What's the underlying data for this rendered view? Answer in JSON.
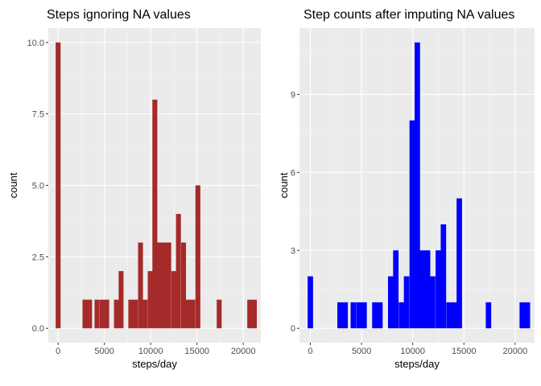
{
  "chart_data": [
    {
      "type": "bar",
      "title": "Steps ignoring NA values",
      "xlabel": "steps/day",
      "ylabel": "count",
      "xlim": [
        -1060,
        21900
      ],
      "ylim": [
        -0.5,
        10.5
      ],
      "xticks": [
        0,
        5000,
        10000,
        15000,
        20000
      ],
      "yticks": [
        0,
        2.5,
        5,
        7.5,
        10
      ],
      "ytick_labels": [
        "0.0",
        "2.5",
        "5.0",
        "7.5",
        "10.0"
      ],
      "bin_width": 530,
      "bins": [
        {
          "x": 0,
          "count": 10
        },
        {
          "x": 2900,
          "count": 1
        },
        {
          "x": 3400,
          "count": 1
        },
        {
          "x": 4200,
          "count": 1
        },
        {
          "x": 4750,
          "count": 1
        },
        {
          "x": 5250,
          "count": 1
        },
        {
          "x": 6300,
          "count": 1
        },
        {
          "x": 6800,
          "count": 2
        },
        {
          "x": 7850,
          "count": 1
        },
        {
          "x": 8350,
          "count": 1
        },
        {
          "x": 8900,
          "count": 3
        },
        {
          "x": 9400,
          "count": 1
        },
        {
          "x": 9950,
          "count": 2
        },
        {
          "x": 10450,
          "count": 8
        },
        {
          "x": 10950,
          "count": 3
        },
        {
          "x": 11450,
          "count": 3
        },
        {
          "x": 11950,
          "count": 3
        },
        {
          "x": 12500,
          "count": 2
        },
        {
          "x": 13000,
          "count": 4
        },
        {
          "x": 13550,
          "count": 3
        },
        {
          "x": 14050,
          "count": 1
        },
        {
          "x": 14550,
          "count": 1
        },
        {
          "x": 15100,
          "count": 5
        },
        {
          "x": 17400,
          "count": 1
        },
        {
          "x": 20700,
          "count": 1
        },
        {
          "x": 21200,
          "count": 1
        }
      ],
      "color": "#a52a2a"
    },
    {
      "type": "bar",
      "title": "Step counts after imputing NA values",
      "xlabel": "steps/day",
      "ylabel": "count",
      "xlim": [
        -1060,
        21900
      ],
      "ylim": [
        -0.55,
        11.55
      ],
      "xticks": [
        0,
        5000,
        10000,
        15000,
        20000
      ],
      "yticks": [
        0,
        3,
        6,
        9
      ],
      "ytick_labels": [
        "0",
        "3",
        "6",
        "9"
      ],
      "bin_width": 530,
      "bins": [
        {
          "x": 0,
          "count": 2
        },
        {
          "x": 2900,
          "count": 1
        },
        {
          "x": 3400,
          "count": 1
        },
        {
          "x": 4200,
          "count": 1
        },
        {
          "x": 4750,
          "count": 1
        },
        {
          "x": 5250,
          "count": 1
        },
        {
          "x": 6300,
          "count": 1
        },
        {
          "x": 6800,
          "count": 1
        },
        {
          "x": 7850,
          "count": 2
        },
        {
          "x": 8350,
          "count": 3
        },
        {
          "x": 8900,
          "count": 1
        },
        {
          "x": 9400,
          "count": 2
        },
        {
          "x": 9950,
          "count": 8
        },
        {
          "x": 10450,
          "count": 11
        },
        {
          "x": 10950,
          "count": 3
        },
        {
          "x": 11450,
          "count": 3
        },
        {
          "x": 11950,
          "count": 2
        },
        {
          "x": 12500,
          "count": 3
        },
        {
          "x": 13000,
          "count": 4
        },
        {
          "x": 13550,
          "count": 1
        },
        {
          "x": 14050,
          "count": 1
        },
        {
          "x": 14550,
          "count": 5
        },
        {
          "x": 17400,
          "count": 1
        },
        {
          "x": 20700,
          "count": 1
        },
        {
          "x": 21200,
          "count": 1
        }
      ],
      "color": "#0000ff"
    }
  ]
}
